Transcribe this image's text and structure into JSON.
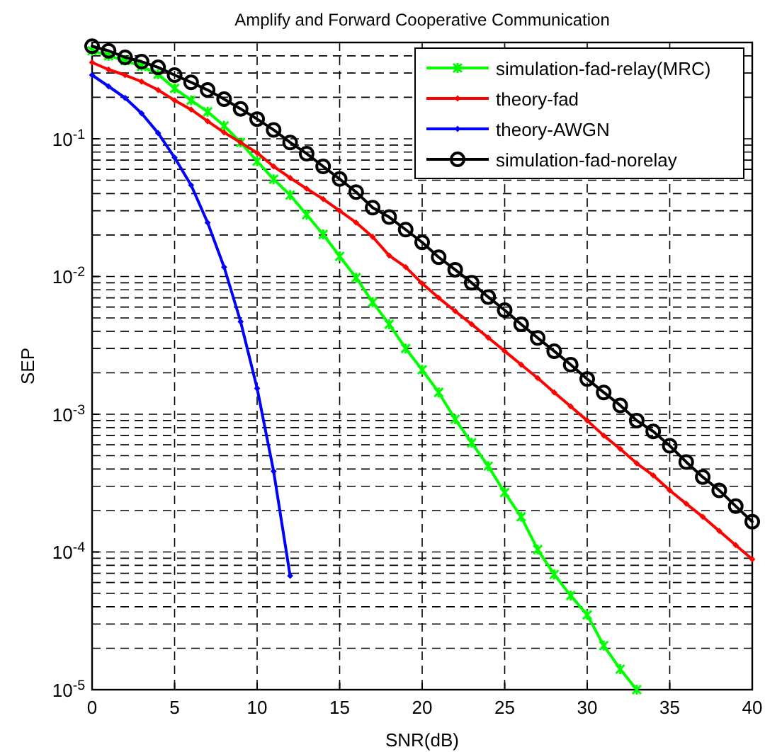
{
  "chart_data": {
    "type": "line",
    "title": "Amplify and Forward Cooperative Communication",
    "xlabel": "SNR(dB)",
    "ylabel": "SEP",
    "log": "y",
    "grid": true,
    "legend": "top right",
    "xlim": [
      0,
      40
    ],
    "xticks": [
      0,
      5,
      10,
      15,
      20,
      25,
      30,
      35,
      40
    ],
    "ylim": [
      1e-05,
      0.5
    ],
    "yticks": [
      {
        "value": 1e-05,
        "label": "10$^{-5}$"
      },
      {
        "value": 0.0001,
        "label": "10$^{-4}$"
      },
      {
        "value": 0.001,
        "label": "10$^{-3}$"
      },
      {
        "value": 0.01,
        "label": "10$^{-2}$"
      },
      {
        "value": 0.1,
        "label": "10$^{-1}$"
      }
    ],
    "x": [
      0,
      1,
      2,
      3,
      4,
      5,
      6,
      7,
      8,
      9,
      10,
      11,
      12,
      13,
      14,
      15,
      16,
      17,
      18,
      19,
      20,
      21,
      22,
      23,
      24,
      25,
      26,
      27,
      28,
      29,
      30,
      31,
      32,
      33,
      34,
      35,
      36,
      37,
      38,
      39,
      40
    ],
    "series": [
      {
        "name": "simulation-fad-relay(MRC)",
        "color": "#00ff00",
        "marker": "cross",
        "x": [
          0,
          1,
          2,
          3,
          4,
          5,
          6,
          7,
          8,
          9,
          10,
          11,
          12,
          13,
          14,
          15,
          16,
          17,
          18,
          19,
          20,
          21,
          22,
          23,
          24,
          25,
          26,
          27,
          28,
          29,
          30,
          31,
          32,
          33
        ],
        "values": [
          0.435,
          0.4,
          0.37,
          0.336,
          0.294,
          0.232,
          0.19,
          0.157,
          0.124,
          0.094,
          0.0686,
          0.0508,
          0.039,
          0.0281,
          0.0202,
          0.014,
          0.0098,
          0.0065,
          0.0045,
          0.003,
          0.0021,
          0.00144,
          0.00092,
          0.00062,
          0.00042,
          0.00027,
          0.00018,
          0.000104,
          6.87e-05,
          4.82e-05,
          3.49e-05,
          2.09e-05,
          1.41e-05,
          1e-05
        ]
      },
      {
        "name": "theory-fad",
        "color": "#ff0000",
        "marker": "diamond",
        "values": [
          0.358,
          0.318,
          0.29,
          0.26,
          0.226,
          0.19,
          0.163,
          0.134,
          0.111,
          0.094,
          0.079,
          0.063,
          0.052,
          0.0434,
          0.0365,
          0.03,
          0.0246,
          0.0194,
          0.0142,
          0.0117,
          0.0089,
          0.007,
          0.0056,
          0.0045,
          0.0036,
          0.00287,
          0.00229,
          0.00183,
          0.00144,
          0.00114,
          0.0009,
          0.0007,
          0.00056,
          0.00044,
          0.00036,
          0.00028,
          0.000224,
          0.00018,
          0.000142,
          0.000112,
          8.85e-05
        ]
      },
      {
        "name": "theory-AWGN",
        "color": "#0000ff",
        "marker": "diamond",
        "x": [
          0,
          1,
          2,
          3,
          4,
          5,
          6,
          7,
          8,
          9,
          10,
          11,
          12
        ],
        "values": [
          0.29,
          0.24,
          0.198,
          0.153,
          0.11,
          0.073,
          0.046,
          0.0246,
          0.0117,
          0.0047,
          0.00154,
          0.000385,
          6.71e-05
        ]
      },
      {
        "name": "simulation-fad-norelay",
        "color": "#000000",
        "marker": "circle",
        "values": [
          0.47,
          0.435,
          0.39,
          0.363,
          0.33,
          0.29,
          0.257,
          0.226,
          0.194,
          0.165,
          0.139,
          0.116,
          0.094,
          0.078,
          0.063,
          0.051,
          0.041,
          0.0316,
          0.027,
          0.0219,
          0.0177,
          0.0138,
          0.0112,
          0.009,
          0.0071,
          0.0057,
          0.0045,
          0.00358,
          0.00287,
          0.00229,
          0.0018,
          0.00144,
          0.00116,
          0.0009,
          0.00075,
          0.00059,
          0.00045,
          0.00035,
          0.00028,
          0.000215,
          0.000166
        ]
      }
    ]
  }
}
